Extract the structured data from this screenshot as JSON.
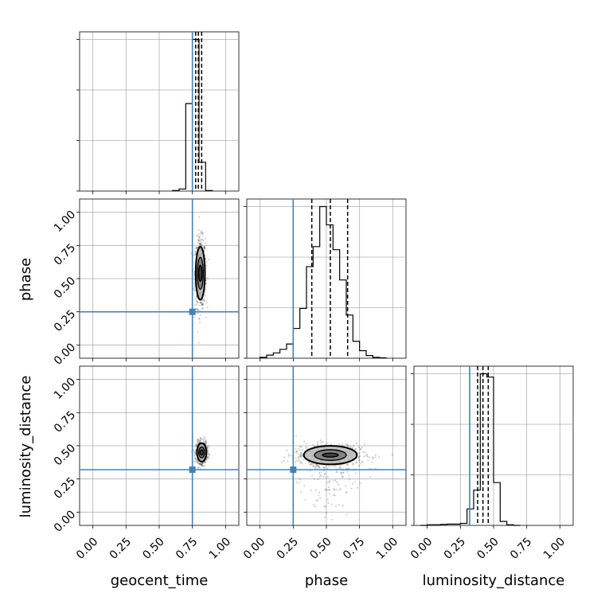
{
  "chart_data": {
    "type": "corner",
    "parameters": [
      "geocent_time",
      "phase",
      "luminosity_distance"
    ],
    "tick_values": [
      0.0,
      0.25,
      0.5,
      0.75,
      1.0
    ],
    "tick_labels": [
      "0.00",
      "0.25",
      "0.50",
      "0.75",
      "1.00"
    ],
    "axis_range": [
      -0.1,
      1.1
    ],
    "truths": [
      0.75,
      0.25,
      0.32
    ],
    "truth_color": "#4682b4",
    "contour_color": "#000000",
    "grid": true,
    "histograms": [
      {
        "parameter": "geocent_time",
        "bin_edges": [
          0.6,
          0.65,
          0.7,
          0.75,
          0.8,
          0.85,
          0.9
        ],
        "counts": [
          1,
          4,
          173,
          300,
          57,
          1
        ],
        "quantiles": [
          0.775,
          0.795,
          0.82
        ]
      },
      {
        "parameter": "phase",
        "bin_edges": [
          0.0,
          0.05,
          0.1,
          0.15,
          0.2,
          0.25,
          0.3,
          0.35,
          0.4,
          0.45,
          0.5,
          0.55,
          0.6,
          0.65,
          0.7,
          0.75,
          0.8,
          0.85,
          0.9,
          0.95
        ],
        "counts": [
          2,
          7,
          12,
          20,
          32,
          67,
          112,
          206,
          251,
          341,
          300,
          244,
          176,
          97,
          38,
          17,
          6,
          2,
          1
        ],
        "quantiles": [
          0.39,
          0.53,
          0.66
        ]
      },
      {
        "parameter": "luminosity_distance",
        "bin_edges": [
          -0.05,
          0.0,
          0.05,
          0.1,
          0.15,
          0.2,
          0.25,
          0.3,
          0.35,
          0.4,
          0.45,
          0.5,
          0.55,
          0.6,
          0.65,
          0.7
        ],
        "counts": [
          0,
          2,
          2,
          3,
          4,
          4,
          6,
          50,
          107,
          460,
          450,
          130,
          12,
          2,
          0
        ],
        "quantiles": [
          0.38,
          0.42,
          0.46
        ]
      }
    ],
    "scatter_panels": [
      {
        "x": "geocent_time",
        "y": "phase",
        "center": [
          0.81,
          0.54
        ],
        "spread": [
          0.02,
          0.13
        ],
        "contour_levels": [
          [
            0.012,
            0.06
          ],
          [
            0.022,
            0.12
          ],
          [
            0.035,
            0.2
          ]
        ]
      },
      {
        "x": "geocent_time",
        "y": "luminosity_distance",
        "center": [
          0.82,
          0.45
        ],
        "spread": [
          0.02,
          0.04
        ],
        "contour_levels": [
          [
            0.012,
            0.02
          ],
          [
            0.022,
            0.04
          ],
          [
            0.035,
            0.07
          ]
        ]
      },
      {
        "x": "phase",
        "y": "luminosity_distance",
        "center": [
          0.53,
          0.43
        ],
        "spread": [
          0.13,
          0.04
        ],
        "contour_levels": [
          [
            0.06,
            0.015
          ],
          [
            0.12,
            0.04
          ],
          [
            0.2,
            0.07
          ]
        ]
      }
    ]
  }
}
